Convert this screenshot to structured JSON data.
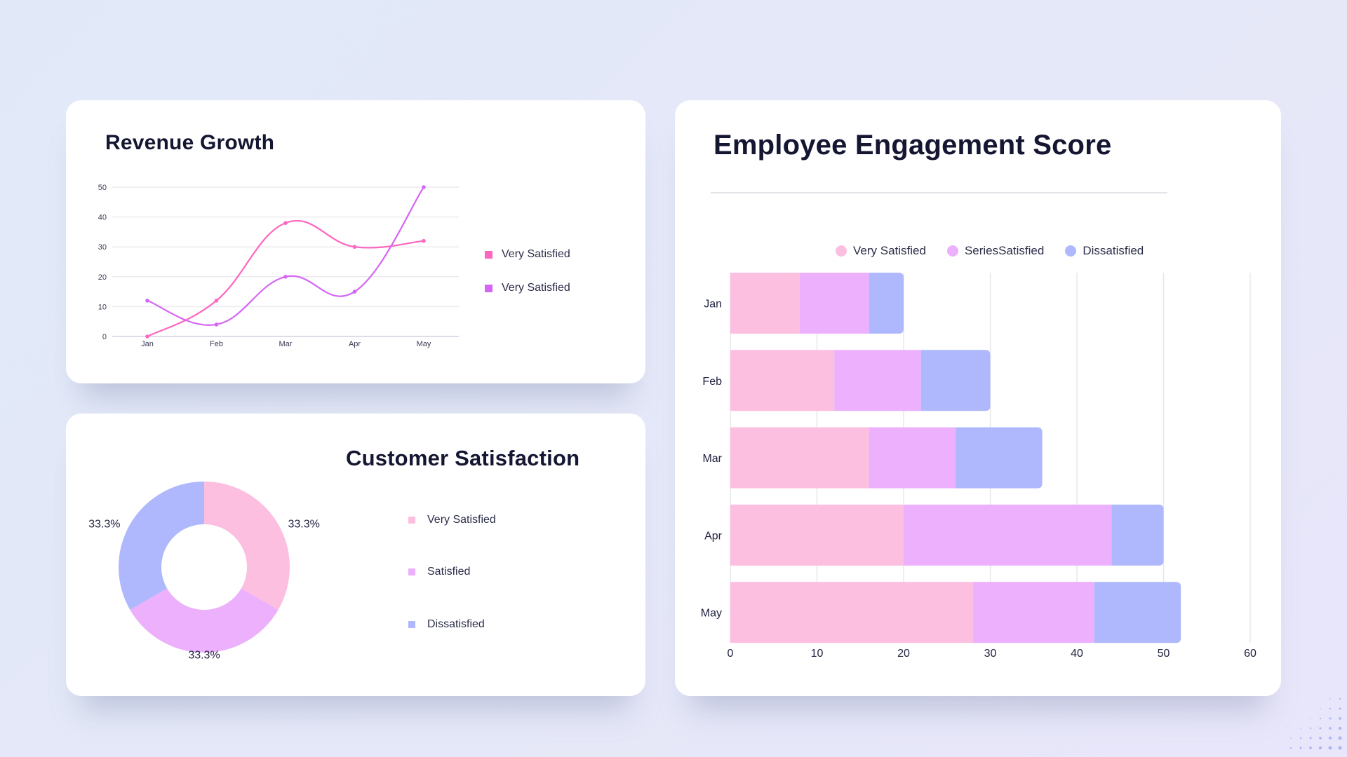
{
  "colors": {
    "background": "#e3e8f8",
    "card": "#ffffff",
    "title_text": "#141632",
    "very_satisfied": "#fcbfe0",
    "satisfied": "#ecb0fc",
    "dissatisfied": "#afb8fc",
    "line_pink": "#ff66c0",
    "line_purple": "#d566f5",
    "dots": "#a6acf4"
  },
  "revenue_card": {
    "title": "Revenue Growth",
    "legend": [
      {
        "label": "Very Satisfied",
        "color": "#ff66c0"
      },
      {
        "label": "Very Satisfied",
        "color": "#d566f5"
      }
    ]
  },
  "customer_card": {
    "title": "Customer Satisfaction",
    "legend": [
      {
        "label": "Very Satisfied",
        "color": "#fcbfe0"
      },
      {
        "label": "Satisfied",
        "color": "#ecb0fc"
      },
      {
        "label": "Dissatisfied",
        "color": "#afb8fc"
      }
    ]
  },
  "engagement_card": {
    "title": "Employee Engagement Score",
    "legend": [
      {
        "label": "Very Satisfied",
        "color": "#fcbfe0"
      },
      {
        "label": "SeriesSatisfied",
        "color": "#ecb0fc"
      },
      {
        "label": "Dissatisfied",
        "color": "#afb8fc"
      }
    ]
  },
  "chart_data": [
    {
      "id": "revenue",
      "type": "line",
      "title": "Revenue Growth",
      "categories": [
        "Jan",
        "Feb",
        "Mar",
        "Apr",
        "May"
      ],
      "series": [
        {
          "name": "Very Satisfied",
          "color": "#ff66c0",
          "values": [
            0,
            12,
            38,
            30,
            32
          ]
        },
        {
          "name": "Very Satisfied",
          "color": "#d566f5",
          "values": [
            12,
            4,
            20,
            15,
            50
          ]
        }
      ],
      "yticks": [
        "0",
        "10",
        "20",
        "30",
        "40",
        "50"
      ],
      "ylim": [
        0,
        50
      ],
      "smooth": true,
      "grid": true,
      "legend": "right"
    },
    {
      "id": "customer",
      "type": "pie",
      "donut": true,
      "title": "Customer Satisfaction",
      "slices": [
        {
          "label": "Very Satisfied",
          "value": 33.3,
          "display": "33.3%",
          "color": "#fcbfe0"
        },
        {
          "label": "Satisfied",
          "value": 33.3,
          "display": "33.3%",
          "color": "#ecb0fc"
        },
        {
          "label": "Dissatisfied",
          "value": 33.3,
          "display": "33.3%",
          "color": "#afb8fc"
        }
      ],
      "legend": "right"
    },
    {
      "id": "engagement",
      "type": "bar",
      "orientation": "horizontal",
      "stacked": true,
      "title": "Employee Engagement Score",
      "categories": [
        "Jan",
        "Feb",
        "Mar",
        "Apr",
        "May"
      ],
      "series": [
        {
          "name": "Very Satisfied",
          "color": "#fcbfe0",
          "values": [
            8,
            12,
            16,
            20,
            28
          ]
        },
        {
          "name": "SeriesSatisfied",
          "color": "#ecb0fc",
          "values": [
            8,
            10,
            10,
            24,
            14
          ]
        },
        {
          "name": "Dissatisfied",
          "color": "#afb8fc",
          "values": [
            4,
            8,
            10,
            6,
            10
          ]
        }
      ],
      "xticks": [
        "0",
        "10",
        "20",
        "30",
        "40",
        "50",
        "60"
      ],
      "xlim": [
        0,
        60
      ],
      "grid": true,
      "legend": "top"
    }
  ]
}
